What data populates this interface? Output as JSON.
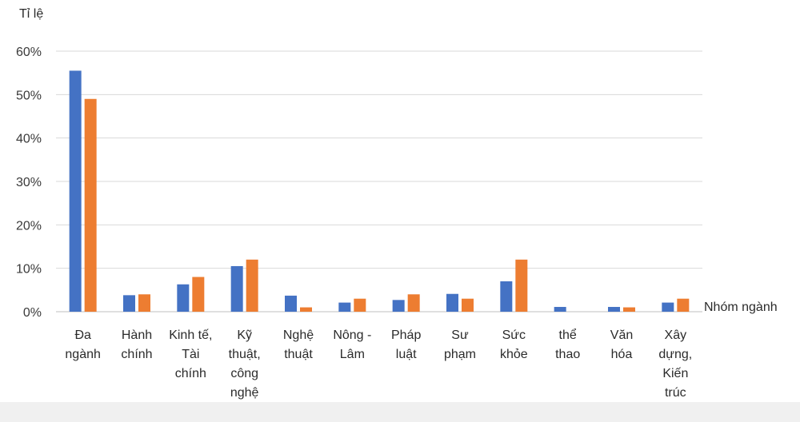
{
  "chart_data": {
    "type": "bar",
    "ylabel": "Tỉ lệ",
    "xlabel": "Nhóm ngành",
    "ylim": [
      0,
      60
    ],
    "yticks": [
      "0%",
      "10%",
      "20%",
      "30%",
      "40%",
      "50%",
      "60%"
    ],
    "grid": true,
    "categories": [
      [
        "Đa",
        "ngành"
      ],
      [
        "Hành",
        "chính"
      ],
      [
        "Kinh tế,",
        "Tài",
        "chính"
      ],
      [
        "Kỹ",
        "thuật,",
        "công",
        "nghệ"
      ],
      [
        "Nghệ",
        "thuật"
      ],
      [
        "Nông -",
        "Lâm"
      ],
      [
        "Pháp",
        "luật"
      ],
      [
        "Sư",
        "phạm"
      ],
      [
        "Sức",
        "khỏe"
      ],
      [
        "thể",
        "thao"
      ],
      [
        "Văn",
        "hóa"
      ],
      [
        "Xây",
        "dựng,",
        "Kiến",
        "trúc"
      ]
    ],
    "series": [
      {
        "color": "#4472C4",
        "values": [
          55.5,
          3.8,
          6.3,
          10.5,
          3.7,
          2.1,
          2.7,
          4.1,
          7.0,
          1.1,
          1.1,
          2.1
        ]
      },
      {
        "color": "#ED7D31",
        "values": [
          49.0,
          4.0,
          8.0,
          12.0,
          1.0,
          3.0,
          4.0,
          3.0,
          12.0,
          0.0,
          1.0,
          3.0
        ]
      }
    ]
  }
}
